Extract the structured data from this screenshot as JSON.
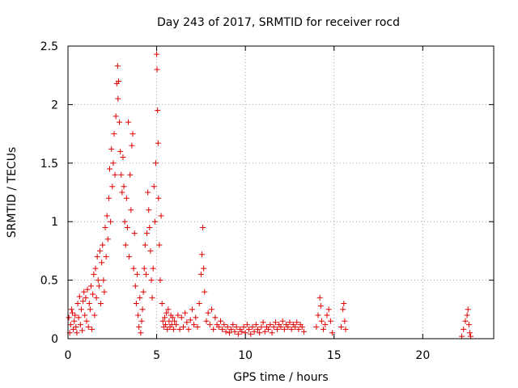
{
  "chart_data": {
    "type": "scatter",
    "title": "Day 243 of 2017, SRMTID for receiver rocd",
    "xlabel": "GPS time / hours",
    "ylabel": "SRMTID / TECUs",
    "xlim": [
      0,
      24
    ],
    "ylim": [
      0,
      2.5
    ],
    "xticks": [
      0,
      5,
      10,
      15,
      20
    ],
    "yticks": [
      0,
      0.5,
      1,
      1.5,
      2,
      2.5
    ],
    "xtick_labels": [
      "0",
      "5",
      "10",
      "15",
      "20"
    ],
    "ytick_labels": [
      "0",
      "0.5",
      "1",
      "1.5",
      "2",
      "2.5"
    ],
    "grid": true,
    "marker": "plus",
    "color": "#e00000",
    "series": [
      {
        "name": "SRMTID",
        "points": [
          [
            0.05,
            0.18
          ],
          [
            0.1,
            0.05
          ],
          [
            0.15,
            0.12
          ],
          [
            0.2,
            0.25
          ],
          [
            0.25,
            0.22
          ],
          [
            0.3,
            0.08
          ],
          [
            0.35,
            0.15
          ],
          [
            0.4,
            0.2
          ],
          [
            0.45,
            0.1
          ],
          [
            0.5,
            0.05
          ],
          [
            0.55,
            0.3
          ],
          [
            0.6,
            0.18
          ],
          [
            0.65,
            0.36
          ],
          [
            0.7,
            0.12
          ],
          [
            0.75,
            0.25
          ],
          [
            0.8,
            0.07
          ],
          [
            0.85,
            0.32
          ],
          [
            0.9,
            0.4
          ],
          [
            0.95,
            0.2
          ],
          [
            1.0,
            0.35
          ],
          [
            1.05,
            0.15
          ],
          [
            1.1,
            0.42
          ],
          [
            1.15,
            0.1
          ],
          [
            1.2,
            0.3
          ],
          [
            1.25,
            0.25
          ],
          [
            1.3,
            0.45
          ],
          [
            1.35,
            0.08
          ],
          [
            1.4,
            0.38
          ],
          [
            1.45,
            0.55
          ],
          [
            1.5,
            0.2
          ],
          [
            1.55,
            0.6
          ],
          [
            1.6,
            0.35
          ],
          [
            1.65,
            0.7
          ],
          [
            1.7,
            0.5
          ],
          [
            1.75,
            0.45
          ],
          [
            1.8,
            0.75
          ],
          [
            1.85,
            0.3
          ],
          [
            1.9,
            0.65
          ],
          [
            1.95,
            0.8
          ],
          [
            2.0,
            0.5
          ],
          [
            2.05,
            0.4
          ],
          [
            2.1,
            0.95
          ],
          [
            2.15,
            0.7
          ],
          [
            2.2,
            1.05
          ],
          [
            2.25,
            0.85
          ],
          [
            2.3,
            1.2
          ],
          [
            2.35,
            1.45
          ],
          [
            2.4,
            1.0
          ],
          [
            2.45,
            1.62
          ],
          [
            2.5,
            1.3
          ],
          [
            2.55,
            1.5
          ],
          [
            2.6,
            1.75
          ],
          [
            2.65,
            1.4
          ],
          [
            2.7,
            1.9
          ],
          [
            2.75,
            2.18
          ],
          [
            2.8,
            2.33
          ],
          [
            2.82,
            2.05
          ],
          [
            2.85,
            2.2
          ],
          [
            2.9,
            1.85
          ],
          [
            2.95,
            1.6
          ],
          [
            3.0,
            1.4
          ],
          [
            3.05,
            1.25
          ],
          [
            3.1,
            1.55
          ],
          [
            3.15,
            1.3
          ],
          [
            3.2,
            1.0
          ],
          [
            3.25,
            0.8
          ],
          [
            3.3,
            1.2
          ],
          [
            3.35,
            0.95
          ],
          [
            3.4,
            1.85
          ],
          [
            3.45,
            0.7
          ],
          [
            3.5,
            1.4
          ],
          [
            3.55,
            1.1
          ],
          [
            3.6,
            1.65
          ],
          [
            3.65,
            1.75
          ],
          [
            3.7,
            0.6
          ],
          [
            3.75,
            0.9
          ],
          [
            3.8,
            0.45
          ],
          [
            3.85,
            0.3
          ],
          [
            3.9,
            0.55
          ],
          [
            3.95,
            0.2
          ],
          [
            4.0,
            0.1
          ],
          [
            4.05,
            0.35
          ],
          [
            4.1,
            0.05
          ],
          [
            4.15,
            0.15
          ],
          [
            4.2,
            0.25
          ],
          [
            4.25,
            0.4
          ],
          [
            4.3,
            0.6
          ],
          [
            4.35,
            0.8
          ],
          [
            4.4,
            0.55
          ],
          [
            4.45,
            0.9
          ],
          [
            4.5,
            1.25
          ],
          [
            4.55,
            1.1
          ],
          [
            4.6,
            0.95
          ],
          [
            4.65,
            0.75
          ],
          [
            4.7,
            0.5
          ],
          [
            4.75,
            0.35
          ],
          [
            4.8,
            0.6
          ],
          [
            4.85,
            1.3
          ],
          [
            4.9,
            1.0
          ],
          [
            4.95,
            1.5
          ],
          [
            5.0,
            2.43
          ],
          [
            5.02,
            2.3
          ],
          [
            5.05,
            1.95
          ],
          [
            5.08,
            1.67
          ],
          [
            5.1,
            1.2
          ],
          [
            5.15,
            0.8
          ],
          [
            5.2,
            0.5
          ],
          [
            5.25,
            1.05
          ],
          [
            5.3,
            0.3
          ],
          [
            5.35,
            0.15
          ],
          [
            5.4,
            0.1
          ],
          [
            5.45,
            0.18
          ],
          [
            5.5,
            0.12
          ],
          [
            5.55,
            0.22
          ],
          [
            5.6,
            0.08
          ],
          [
            5.65,
            0.25
          ],
          [
            5.7,
            0.15
          ],
          [
            5.75,
            0.1
          ],
          [
            5.8,
            0.2
          ],
          [
            5.85,
            0.12
          ],
          [
            5.9,
            0.18
          ],
          [
            5.95,
            0.08
          ],
          [
            6.0,
            0.15
          ],
          [
            6.1,
            0.12
          ],
          [
            6.2,
            0.2
          ],
          [
            6.3,
            0.08
          ],
          [
            6.4,
            0.18
          ],
          [
            6.5,
            0.1
          ],
          [
            6.6,
            0.22
          ],
          [
            6.7,
            0.14
          ],
          [
            6.8,
            0.08
          ],
          [
            6.9,
            0.16
          ],
          [
            7.0,
            0.25
          ],
          [
            7.1,
            0.12
          ],
          [
            7.2,
            0.18
          ],
          [
            7.3,
            0.1
          ],
          [
            7.4,
            0.3
          ],
          [
            7.5,
            0.55
          ],
          [
            7.55,
            0.72
          ],
          [
            7.6,
            0.95
          ],
          [
            7.65,
            0.6
          ],
          [
            7.7,
            0.4
          ],
          [
            7.8,
            0.15
          ],
          [
            7.9,
            0.22
          ],
          [
            8.0,
            0.12
          ],
          [
            8.1,
            0.25
          ],
          [
            8.2,
            0.08
          ],
          [
            8.3,
            0.18
          ],
          [
            8.4,
            0.12
          ],
          [
            8.5,
            0.1
          ],
          [
            8.6,
            0.15
          ],
          [
            8.7,
            0.08
          ],
          [
            8.8,
            0.12
          ],
          [
            8.9,
            0.06
          ],
          [
            9.0,
            0.1
          ],
          [
            9.1,
            0.05
          ],
          [
            9.2,
            0.08
          ],
          [
            9.3,
            0.12
          ],
          [
            9.4,
            0.06
          ],
          [
            9.5,
            0.1
          ],
          [
            9.6,
            0.04
          ],
          [
            9.7,
            0.08
          ],
          [
            9.8,
            0.06
          ],
          [
            9.9,
            0.1
          ],
          [
            10.0,
            0.05
          ],
          [
            10.1,
            0.12
          ],
          [
            10.2,
            0.08
          ],
          [
            10.3,
            0.04
          ],
          [
            10.4,
            0.1
          ],
          [
            10.5,
            0.06
          ],
          [
            10.6,
            0.12
          ],
          [
            10.7,
            0.08
          ],
          [
            10.8,
            0.05
          ],
          [
            10.9,
            0.1
          ],
          [
            11.0,
            0.14
          ],
          [
            11.1,
            0.06
          ],
          [
            11.2,
            0.1
          ],
          [
            11.3,
            0.08
          ],
          [
            11.4,
            0.12
          ],
          [
            11.5,
            0.05
          ],
          [
            11.6,
            0.1
          ],
          [
            11.7,
            0.14
          ],
          [
            11.8,
            0.08
          ],
          [
            11.9,
            0.12
          ],
          [
            12.0,
            0.1
          ],
          [
            12.1,
            0.15
          ],
          [
            12.2,
            0.08
          ],
          [
            12.3,
            0.12
          ],
          [
            12.4,
            0.1
          ],
          [
            12.5,
            0.14
          ],
          [
            12.6,
            0.08
          ],
          [
            12.7,
            0.12
          ],
          [
            12.8,
            0.1
          ],
          [
            12.9,
            0.14
          ],
          [
            13.0,
            0.08
          ],
          [
            13.1,
            0.12
          ],
          [
            13.2,
            0.1
          ],
          [
            13.3,
            0.06
          ],
          [
            14.0,
            0.1
          ],
          [
            14.1,
            0.2
          ],
          [
            14.2,
            0.35
          ],
          [
            14.25,
            0.28
          ],
          [
            14.3,
            0.15
          ],
          [
            14.4,
            0.08
          ],
          [
            14.5,
            0.12
          ],
          [
            14.6,
            0.2
          ],
          [
            14.7,
            0.25
          ],
          [
            14.8,
            0.15
          ],
          [
            14.9,
            0.05
          ],
          [
            15.4,
            0.1
          ],
          [
            15.5,
            0.25
          ],
          [
            15.55,
            0.3
          ],
          [
            15.6,
            0.15
          ],
          [
            15.65,
            0.08
          ],
          [
            22.2,
            0.02
          ],
          [
            22.3,
            0.08
          ],
          [
            22.4,
            0.15
          ],
          [
            22.5,
            0.2
          ],
          [
            22.55,
            0.25
          ],
          [
            22.6,
            0.12
          ],
          [
            22.65,
            0.05
          ],
          [
            22.7,
            0.02
          ]
        ]
      }
    ]
  }
}
